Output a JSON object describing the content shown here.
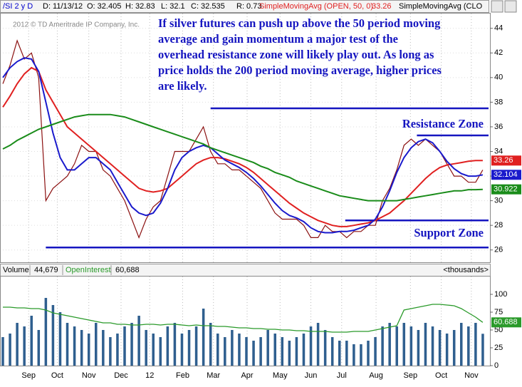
{
  "header": {
    "symbol": "/SI 2 y D",
    "date": "D: 11/13/12",
    "open": "O: 32.405",
    "high": "H: 32.83",
    "low": "L: 32.1",
    "close": "C: 32.535",
    "range": "R: 0.73",
    "study1": "SimpleMovingAvg (OPEN, 50, 0)",
    "study2": "SimpleMovingAvg (CLO"
  },
  "chart_data": [
    {
      "type": "line",
      "copyright": "2012 © TD Ameritrade IP Company, Inc.",
      "annotation": [
        "If silver futures can push up above the 50 period moving",
        "average and gain momentum a major test of the",
        "overhead resistance zone will likely play out. As long as",
        "price holds the 200 period moving average, higher prices",
        "are likely."
      ],
      "zone_labels": [
        "Resistance Zone",
        "Support Zone"
      ],
      "levels": [
        {
          "value": 37.5,
          "from": 29
        },
        {
          "value": 35.3,
          "from": 57.8
        },
        {
          "value": 28.4,
          "from": 47.8
        },
        {
          "value": 26.2,
          "from": 6
        }
      ],
      "x": [
        0,
        1,
        2,
        3,
        4,
        5,
        6,
        7,
        8,
        9,
        10,
        11,
        12,
        13,
        14,
        15,
        16,
        17,
        18,
        19,
        20,
        21,
        22,
        23,
        24,
        25,
        26,
        27,
        28,
        29,
        30,
        31,
        32,
        33,
        34,
        35,
        36,
        37,
        38,
        39,
        40,
        41,
        42,
        43,
        44,
        45,
        46,
        47,
        48,
        49,
        50,
        51,
        52,
        53,
        54,
        55,
        56,
        57,
        58,
        59,
        60,
        61,
        62,
        63,
        64,
        65,
        66,
        67
      ],
      "xlim": [
        0,
        68
      ],
      "ylim": [
        25,
        45.2
      ],
      "yticks": [
        26,
        28,
        30,
        32,
        34,
        36,
        38,
        40,
        42,
        44
      ],
      "grid": true,
      "series": [
        {
          "color": "#8b1010",
          "values": [
            39.5,
            41,
            43,
            41.5,
            42,
            40,
            30,
            31,
            31.5,
            32,
            33,
            34.5,
            34,
            34,
            32.5,
            32,
            31,
            30,
            28.5,
            27,
            28.5,
            29.5,
            30,
            32,
            34,
            34,
            34,
            35,
            36,
            34,
            33,
            33,
            32.5,
            32.5,
            32,
            31.5,
            31,
            30,
            29,
            28.5,
            28.5,
            28.5,
            28,
            27,
            27,
            28,
            27.5,
            27.5,
            27,
            27.5,
            27.5,
            28,
            28,
            30,
            31,
            32.5,
            34.5,
            35,
            34.5,
            35,
            34.5,
            34,
            33,
            32,
            32,
            31.5,
            31.5,
            32.5
          ]
        },
        {
          "name": "SimpleMovingAvg (OPEN, 50, 0)",
          "color": "#e02020",
          "values": [
            37.6,
            38.5,
            39.5,
            40.3,
            40.8,
            40.5,
            39,
            38,
            37,
            36,
            35.5,
            35,
            34.5,
            34,
            33.5,
            33,
            32.5,
            32,
            31.5,
            31,
            30.8,
            30.7,
            30.8,
            31,
            31.5,
            32,
            32.5,
            33,
            33.3,
            33.5,
            33.5,
            33.4,
            33.2,
            33,
            32.7,
            32.3,
            31.8,
            31.3,
            30.8,
            30.3,
            29.8,
            29.4,
            29,
            28.7,
            28.4,
            28.2,
            28,
            27.9,
            27.9,
            28,
            28.1,
            28.2,
            28.4,
            28.7,
            29,
            29.5,
            30,
            30.6,
            31.2,
            31.8,
            32.3,
            32.7,
            32.9,
            33,
            33.1,
            33.2,
            33.26,
            33.26
          ]
        },
        {
          "color": "#1a1acc",
          "values": [
            40,
            40.8,
            41.3,
            41.6,
            41.5,
            40.5,
            38,
            35.5,
            33.5,
            32.5,
            32.5,
            33,
            33.5,
            33.5,
            33,
            32.5,
            31.5,
            30.5,
            29.5,
            29,
            28.8,
            29,
            29.8,
            31,
            32.5,
            33.5,
            34,
            34.3,
            34.5,
            34.3,
            33.8,
            33.3,
            33,
            32.7,
            32.3,
            31.8,
            31.2,
            30.5,
            29.8,
            29.2,
            28.8,
            28.6,
            28.3,
            27.8,
            27.5,
            27.4,
            27.4,
            27.5,
            27.5,
            27.6,
            27.8,
            28,
            28.5,
            29.5,
            30.8,
            32.3,
            33.5,
            34.3,
            34.8,
            35,
            34.7,
            34,
            33.2,
            32.6,
            32.2,
            32,
            32,
            32.104
          ]
        },
        {
          "name": "SimpleMovingAvg (CLO",
          "color": "#1a8c1a",
          "values": [
            34.2,
            34.5,
            34.9,
            35.2,
            35.5,
            35.8,
            36,
            36.2,
            36.4,
            36.6,
            36.8,
            36.9,
            37,
            37,
            37,
            37,
            36.9,
            36.8,
            36.6,
            36.4,
            36.2,
            36,
            35.8,
            35.6,
            35.4,
            35.2,
            35,
            34.8,
            34.6,
            34.3,
            34.1,
            33.9,
            33.7,
            33.5,
            33.3,
            33.1,
            32.8,
            32.6,
            32.3,
            32.1,
            31.9,
            31.6,
            31.4,
            31.2,
            31,
            30.8,
            30.6,
            30.4,
            30.3,
            30.2,
            30.1,
            30,
            30,
            30,
            30,
            30,
            30.1,
            30.2,
            30.3,
            30.4,
            30.5,
            30.6,
            30.7,
            30.8,
            30.8,
            30.9,
            30.9,
            30.922
          ]
        }
      ]
    },
    {
      "type": "bar",
      "legend": [
        "Volume",
        "44,679",
        "OpenInterest",
        "60,688",
        "<thousands>"
      ],
      "x": [
        0,
        1,
        2,
        3,
        4,
        5,
        6,
        7,
        8,
        9,
        10,
        11,
        12,
        13,
        14,
        15,
        16,
        17,
        18,
        19,
        20,
        21,
        22,
        23,
        24,
        25,
        26,
        27,
        28,
        29,
        30,
        31,
        32,
        33,
        34,
        35,
        36,
        37,
        38,
        39,
        40,
        41,
        42,
        43,
        44,
        45,
        46,
        47,
        48,
        49,
        50,
        51,
        52,
        53,
        54,
        55,
        56,
        57,
        58,
        59,
        60,
        61,
        62,
        63,
        64,
        65,
        66,
        67
      ],
      "xlim": [
        0,
        68
      ],
      "ylim": [
        0,
        125
      ],
      "yticks": [
        0,
        25,
        50,
        75,
        100
      ],
      "xticks": [
        {
          "value": 3.6,
          "label": "Sep"
        },
        {
          "value": 7.6,
          "label": "Oct"
        },
        {
          "value": 12.0,
          "label": "Nov"
        },
        {
          "value": 16.5,
          "label": "Dec"
        },
        {
          "value": 20.5,
          "label": "12"
        },
        {
          "value": 25.1,
          "label": "Feb"
        },
        {
          "value": 29.4,
          "label": "Mar"
        },
        {
          "value": 34.1,
          "label": "Apr"
        },
        {
          "value": 38.7,
          "label": "May"
        },
        {
          "value": 43.0,
          "label": "Jun"
        },
        {
          "value": 47.3,
          "label": "Jul"
        },
        {
          "value": 52.1,
          "label": "Aug"
        },
        {
          "value": 56.9,
          "label": "Sep"
        },
        {
          "value": 61.2,
          "label": "Oct"
        },
        {
          "value": 65.4,
          "label": "Nov"
        }
      ],
      "series": [
        {
          "color": "#2f5f8f",
          "values": [
            40,
            45,
            60,
            55,
            70,
            50,
            95,
            85,
            75,
            60,
            55,
            50,
            45,
            60,
            50,
            40,
            45,
            55,
            60,
            70,
            50,
            45,
            40,
            55,
            60,
            45,
            50,
            55,
            80,
            60,
            45,
            40,
            50,
            45,
            40,
            35,
            40,
            50,
            45,
            40,
            35,
            40,
            45,
            55,
            60,
            50,
            40,
            35,
            35,
            30,
            30,
            35,
            40,
            55,
            60,
            55,
            60,
            55,
            50,
            60,
            55,
            50,
            45,
            50,
            60,
            55,
            60,
            44.679
          ]
        },
        {
          "color": "#2a9a2a",
          "values": [
            82,
            82,
            81,
            81,
            80,
            80,
            78,
            74,
            72,
            70,
            68,
            66,
            64,
            62,
            60,
            60,
            58,
            58,
            57,
            57,
            58,
            58,
            57,
            58,
            58,
            57,
            56,
            57,
            56,
            56,
            55,
            55,
            54,
            53,
            53,
            52,
            52,
            51,
            51,
            50,
            50,
            49,
            49,
            48,
            48,
            48,
            47,
            47,
            47,
            48,
            48,
            48,
            50,
            52,
            54,
            56,
            78,
            80,
            82,
            84,
            86,
            86,
            85,
            84,
            80,
            74,
            68,
            60.688
          ]
        }
      ]
    }
  ]
}
